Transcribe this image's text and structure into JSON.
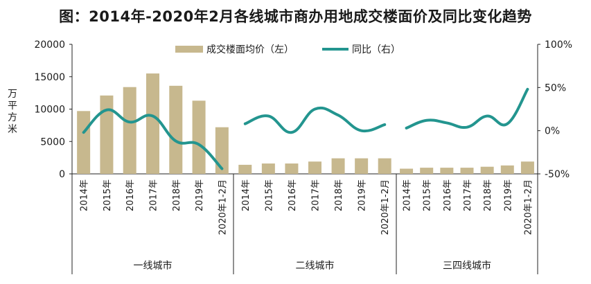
{
  "title": "图：2014年-2020年2月各线城市商办用地成交楼面价及同比变化趋势",
  "chart_data": {
    "type": "bar",
    "title": "图：2014年-2020年2月各线城市商办用地成交楼面价及同比变化趋势",
    "ylabel_left": "万平方米",
    "ylim_left": [
      0,
      20000
    ],
    "yticks_left": [
      "0",
      "5000",
      "10000",
      "15000",
      "20000"
    ],
    "ylim_right": [
      -50,
      100
    ],
    "yticks_right": [
      "-50%",
      "0%",
      "50%",
      "100%"
    ],
    "legend": {
      "position": "top-center",
      "bar_label": "成交楼面均价（左）",
      "line_label": "同比（右）"
    },
    "categories": [
      "2014年",
      "2015年",
      "2016年",
      "2017年",
      "2018年",
      "2019年",
      "2020年1-2月"
    ],
    "groups": [
      {
        "name": "一线城市",
        "bar_values": [
          9700,
          12100,
          13400,
          15500,
          13600,
          11300,
          7200
        ],
        "line_values": [
          -2,
          24,
          10,
          17,
          -12,
          -16,
          -44
        ]
      },
      {
        "name": "二线城市",
        "bar_values": [
          1400,
          1600,
          1600,
          1900,
          2400,
          2400,
          2400
        ],
        "line_values": [
          8,
          17,
          -2,
          25,
          18,
          0,
          7
        ]
      },
      {
        "name": "三四线城市",
        "bar_values": [
          800,
          950,
          950,
          950,
          1100,
          1300,
          1900
        ],
        "line_values": [
          3,
          12,
          9,
          4,
          17,
          8,
          48
        ]
      }
    ],
    "colors": {
      "bar": "#c7b88e",
      "line": "#23958f",
      "axis": "#222222",
      "text": "#1a1a1a"
    }
  }
}
